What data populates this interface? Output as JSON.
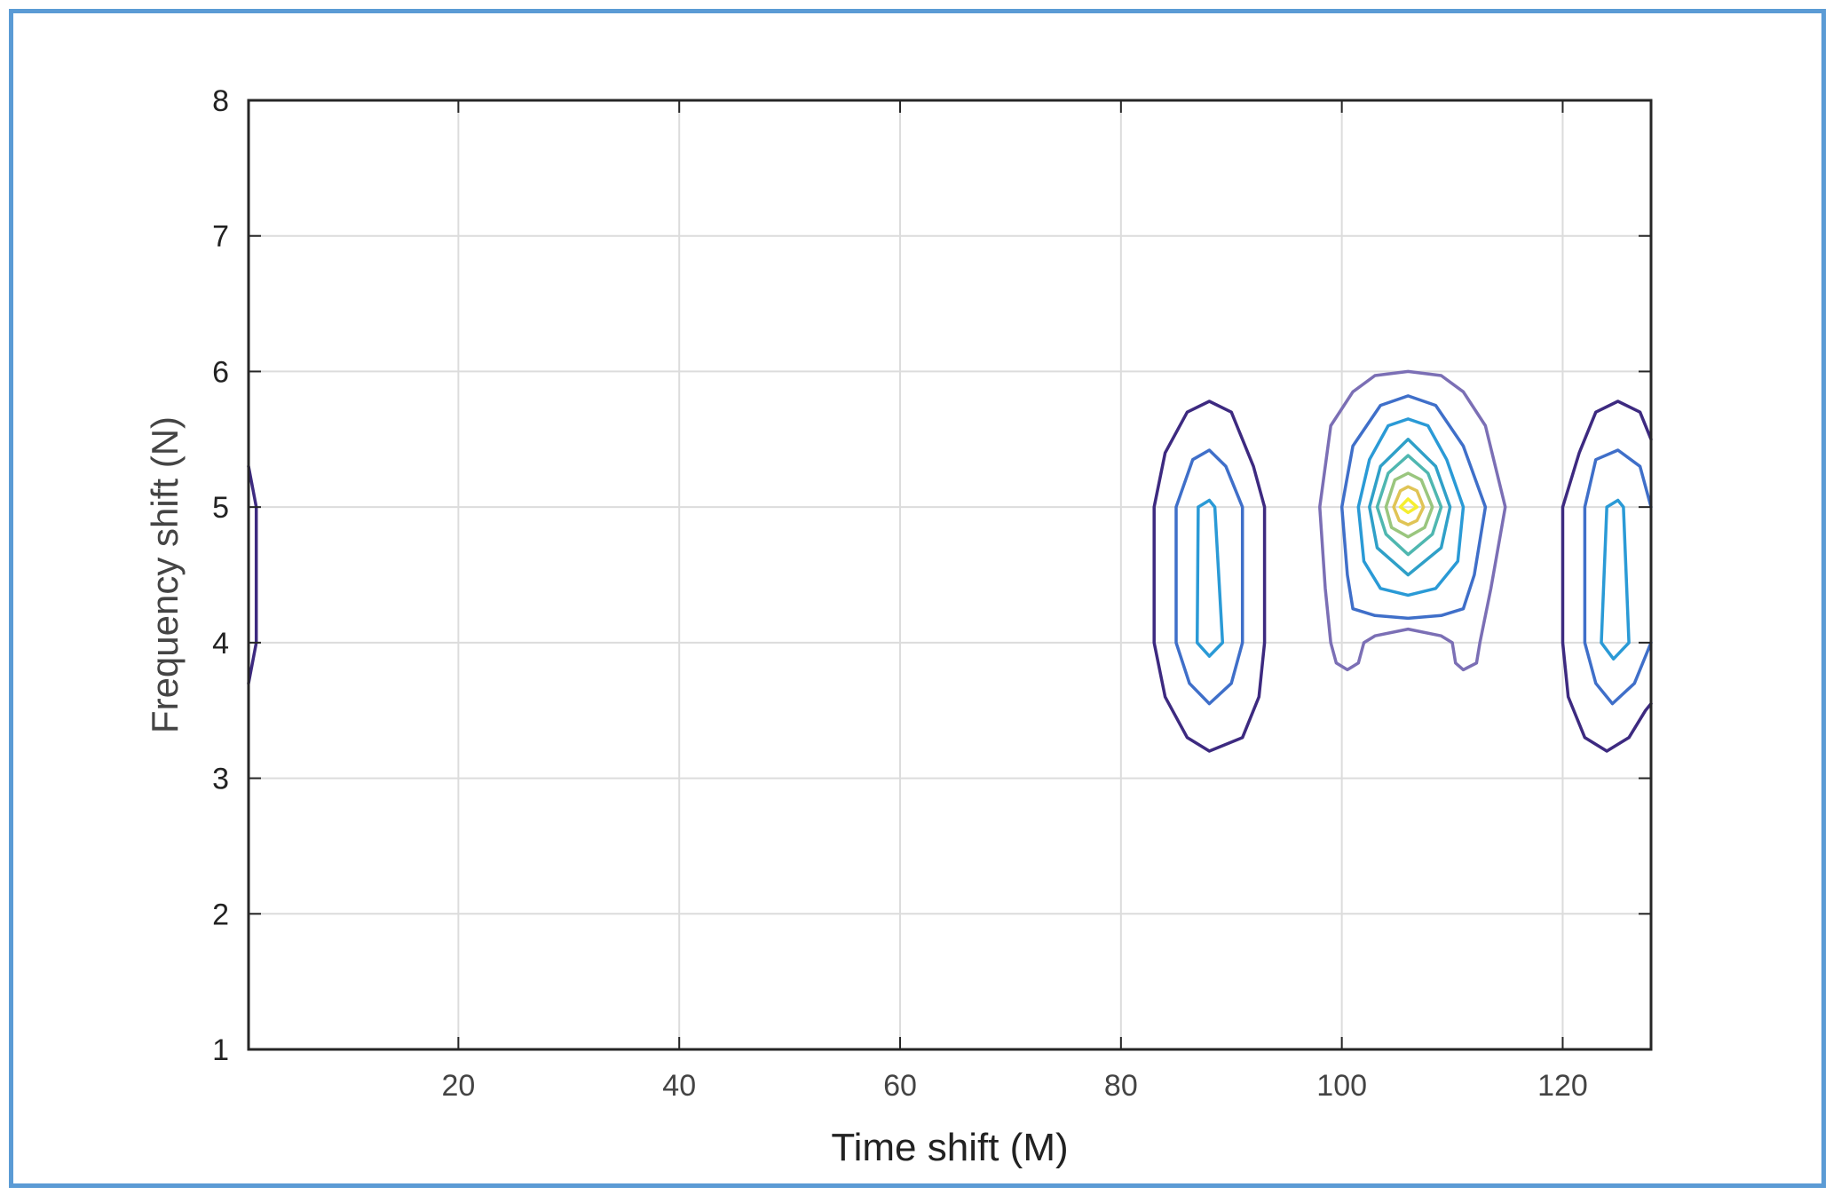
{
  "chart_data": {
    "type": "contour",
    "xlabel": "Time shift (M)",
    "ylabel": "Frequency shift (N)",
    "xlim": [
      1,
      128
    ],
    "ylim": [
      1,
      8
    ],
    "xticks": [
      20,
      40,
      60,
      80,
      100,
      120
    ],
    "yticks": [
      1,
      2,
      3,
      4,
      5,
      6,
      7,
      8
    ],
    "grid": true,
    "colormap": [
      "#3d2a80",
      "#3f6fc9",
      "#2a9ad6",
      "#4fb7b0",
      "#9ac67e",
      "#e0c455",
      "#f5ee30"
    ],
    "peaks": [
      {
        "center": [
          1,
          4.5
        ],
        "contours": [
          {
            "level": 1,
            "color": "#3d2a80",
            "points": [
              [
                1,
                5.3
              ],
              [
                1.7,
                5.0
              ],
              [
                1.7,
                4.0
              ],
              [
                1,
                3.7
              ]
            ]
          }
        ]
      },
      {
        "center": [
          88,
          4.5
        ],
        "contours": [
          {
            "level": 1,
            "color": "#3d2a80",
            "points": [
              [
                83,
                5.0
              ],
              [
                84,
                5.4
              ],
              [
                86,
                5.7
              ],
              [
                88,
                5.78
              ],
              [
                90,
                5.7
              ],
              [
                92,
                5.3
              ],
              [
                93,
                5.0
              ],
              [
                93,
                4.0
              ],
              [
                92.5,
                3.6
              ],
              [
                91,
                3.3
              ],
              [
                88,
                3.2
              ],
              [
                86,
                3.3
              ],
              [
                84,
                3.6
              ],
              [
                83,
                4.0
              ],
              [
                83,
                5.0
              ]
            ]
          },
          {
            "level": 2,
            "color": "#3f6fc9",
            "points": [
              [
                85,
                5.0
              ],
              [
                86.5,
                5.35
              ],
              [
                88,
                5.42
              ],
              [
                89.5,
                5.3
              ],
              [
                91,
                5.0
              ],
              [
                91,
                4.0
              ],
              [
                90,
                3.7
              ],
              [
                88,
                3.55
              ],
              [
                86.2,
                3.7
              ],
              [
                85,
                4.0
              ],
              [
                85,
                5.0
              ]
            ]
          },
          {
            "level": 3,
            "color": "#2a9ad6",
            "points": [
              [
                87,
                5.0
              ],
              [
                88,
                5.05
              ],
              [
                88.5,
                5.0
              ],
              [
                89.2,
                4.0
              ],
              [
                88,
                3.9
              ],
              [
                86.9,
                4.0
              ],
              [
                87,
                5.0
              ]
            ]
          }
        ]
      },
      {
        "center": [
          106,
          5.0
        ],
        "contours": [
          {
            "level": 1,
            "color": "#7b6fb5",
            "points": [
              [
                98,
                5.0
              ],
              [
                99,
                5.6
              ],
              [
                101,
                5.85
              ],
              [
                103,
                5.97
              ],
              [
                106,
                6.0
              ],
              [
                109,
                5.97
              ],
              [
                111,
                5.85
              ],
              [
                113,
                5.6
              ],
              [
                114.8,
                5.0
              ],
              [
                113.5,
                4.4
              ],
              [
                112.5,
                4.0
              ],
              [
                112.2,
                3.85
              ],
              [
                111,
                3.8
              ],
              [
                110.3,
                3.85
              ],
              [
                110,
                4.0
              ],
              [
                109,
                4.05
              ],
              [
                106,
                4.1
              ],
              [
                103,
                4.05
              ],
              [
                102,
                4.0
              ],
              [
                101.5,
                3.85
              ],
              [
                100.5,
                3.8
              ],
              [
                99.5,
                3.85
              ],
              [
                99,
                4.0
              ],
              [
                98.5,
                4.4
              ],
              [
                98,
                5.0
              ]
            ]
          },
          {
            "level": 2,
            "color": "#3f6fc9",
            "points": [
              [
                100,
                5.0
              ],
              [
                101,
                5.45
              ],
              [
                103.5,
                5.75
              ],
              [
                106,
                5.82
              ],
              [
                108.5,
                5.75
              ],
              [
                111,
                5.45
              ],
              [
                113,
                5.0
              ],
              [
                112,
                4.5
              ],
              [
                111,
                4.25
              ],
              [
                109,
                4.2
              ],
              [
                106,
                4.18
              ],
              [
                103,
                4.2
              ],
              [
                101,
                4.25
              ],
              [
                100.5,
                4.5
              ],
              [
                100,
                5.0
              ]
            ]
          },
          {
            "level": 3,
            "color": "#2a9ad6",
            "points": [
              [
                101.5,
                5.0
              ],
              [
                102.5,
                5.35
              ],
              [
                104.2,
                5.6
              ],
              [
                106,
                5.65
              ],
              [
                107.8,
                5.6
              ],
              [
                109.5,
                5.35
              ],
              [
                111,
                5.0
              ],
              [
                110.5,
                4.6
              ],
              [
                108.5,
                4.4
              ],
              [
                106,
                4.35
              ],
              [
                103.5,
                4.4
              ],
              [
                102,
                4.6
              ],
              [
                101.5,
                5.0
              ]
            ]
          },
          {
            "level": 4,
            "color": "#2fa0c8",
            "points": [
              [
                102.5,
                5.0
              ],
              [
                103.5,
                5.3
              ],
              [
                106,
                5.5
              ],
              [
                108.5,
                5.3
              ],
              [
                109.8,
                5.0
              ],
              [
                109,
                4.7
              ],
              [
                106,
                4.5
              ],
              [
                103.2,
                4.7
              ],
              [
                102.5,
                5.0
              ]
            ]
          },
          {
            "level": 5,
            "color": "#4fb7b0",
            "points": [
              [
                103.2,
                5.0
              ],
              [
                104.2,
                5.25
              ],
              [
                106,
                5.38
              ],
              [
                107.8,
                5.25
              ],
              [
                109,
                5.0
              ],
              [
                108.2,
                4.8
              ],
              [
                106,
                4.65
              ],
              [
                104,
                4.8
              ],
              [
                103.2,
                5.0
              ]
            ]
          },
          {
            "level": 6,
            "color": "#9ac67e",
            "points": [
              [
                104,
                5.0
              ],
              [
                104.8,
                5.2
              ],
              [
                106,
                5.25
              ],
              [
                107.2,
                5.2
              ],
              [
                108.2,
                5.0
              ],
              [
                107.5,
                4.85
              ],
              [
                106,
                4.78
              ],
              [
                104.5,
                4.85
              ],
              [
                104,
                5.0
              ]
            ]
          },
          {
            "level": 7,
            "color": "#e0c455",
            "points": [
              [
                104.7,
                5.0
              ],
              [
                105.3,
                5.12
              ],
              [
                106,
                5.15
              ],
              [
                106.8,
                5.12
              ],
              [
                107.4,
                5.0
              ],
              [
                106.8,
                4.9
              ],
              [
                106,
                4.87
              ],
              [
                105.2,
                4.9
              ],
              [
                104.7,
                5.0
              ]
            ]
          },
          {
            "level": 8,
            "color": "#f5ee30",
            "points": [
              [
                105.3,
                5.0
              ],
              [
                106,
                5.06
              ],
              [
                106.8,
                5.0
              ],
              [
                106,
                4.96
              ],
              [
                105.3,
                5.0
              ]
            ]
          }
        ]
      },
      {
        "center": [
          124,
          4.5
        ],
        "contours": [
          {
            "level": 1,
            "color": "#3d2a80",
            "points": [
              [
                128,
                5.5
              ],
              [
                127,
                5.7
              ],
              [
                125,
                5.78
              ],
              [
                123,
                5.7
              ],
              [
                121.5,
                5.4
              ],
              [
                120,
                5.0
              ],
              [
                120,
                4.0
              ],
              [
                120.5,
                3.6
              ],
              [
                122,
                3.3
              ],
              [
                124,
                3.2
              ],
              [
                126,
                3.3
              ],
              [
                127.5,
                3.5
              ],
              [
                128,
                3.55
              ]
            ]
          },
          {
            "level": 2,
            "color": "#3f6fc9",
            "points": [
              [
                128,
                5.0
              ],
              [
                127,
                5.3
              ],
              [
                125,
                5.42
              ],
              [
                123,
                5.35
              ],
              [
                122,
                5.0
              ],
              [
                122,
                4.0
              ],
              [
                123,
                3.7
              ],
              [
                124.5,
                3.55
              ],
              [
                126.5,
                3.7
              ],
              [
                128,
                4.0
              ]
            ]
          },
          {
            "level": 3,
            "color": "#2a9ad6",
            "points": [
              [
                124,
                5.0
              ],
              [
                125,
                5.05
              ],
              [
                125.5,
                5.0
              ],
              [
                126,
                4.0
              ],
              [
                124.6,
                3.88
              ],
              [
                123.5,
                4.0
              ],
              [
                124,
                5.0
              ]
            ]
          }
        ]
      }
    ]
  }
}
